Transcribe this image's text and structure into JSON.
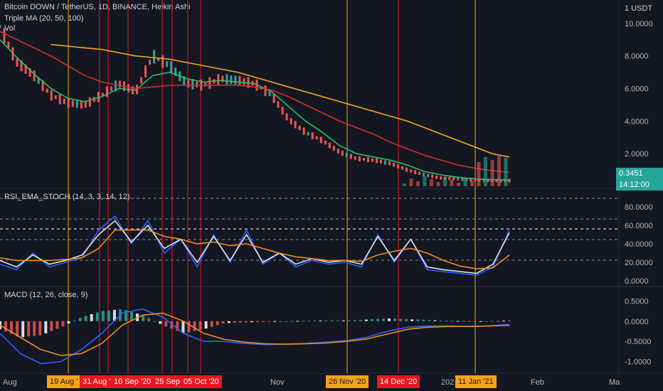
{
  "header": {
    "symbol": "Bitcoin DOWN / TetherUS, 1D, BINANCE, Heikin Ashi",
    "indicator_ma": "Triple MA (20, 50, 100)",
    "indicator_vol": "Vol",
    "currency": "1 USDT"
  },
  "colors": {
    "background": "#131722",
    "grid": "#2a2e39",
    "up": "#26a69a",
    "down": "#ef5350",
    "ma20": "#2bbf6a",
    "ma50": "#d32f2f",
    "ma100": "#f5a623",
    "rsi": "#2962ff",
    "stoch_k": "#e3e3e3",
    "stoch_d": "#f28c1e",
    "marker_orange": "#f7a21b",
    "marker_red": "#e8171f"
  },
  "price_panel": {
    "ticks": [
      "10.0000",
      "8.0000",
      "6.0000",
      "4.0000",
      "2.0000"
    ],
    "last_price": "0.3451",
    "countdown": "14:12:00"
  },
  "rsi_panel": {
    "title": "RSI_EMA_STOCH (14, 3, 3, 14, 12)",
    "ticks": [
      "80.0000",
      "60.0000",
      "40.0000",
      "20.0000",
      "0.0000"
    ]
  },
  "macd_panel": {
    "title": "MACD (12, 26, close, 9)",
    "ticks": [
      "0.5000",
      "0.0000",
      "-0.5000",
      "-1.0000"
    ]
  },
  "x_axis": {
    "months": [
      "Aug",
      "Nov",
      "202",
      "Feb",
      "Ma"
    ],
    "flags": [
      {
        "label": "19 Aug '",
        "color": "orange"
      },
      {
        "label": "31 Aug '",
        "color": "red"
      },
      {
        "label": "10 Sep '20",
        "color": "red"
      },
      {
        "label": "25 Sep",
        "color": "red"
      },
      {
        "label": "05 Oct '20",
        "color": "red"
      },
      {
        "label": "26 Nov '20",
        "color": "orange"
      },
      {
        "label": "14 Dec '20",
        "color": "red"
      },
      {
        "label": "11 Jan '21",
        "color": "orange"
      }
    ]
  },
  "chart_data": [
    {
      "type": "line",
      "title": "Bitcoin DOWN / TetherUS, 1D, BINANCE, Heikin Ashi",
      "ylim": [
        0,
        11
      ],
      "series": [
        {
          "name": "price",
          "values": [
            9.8,
            7.6,
            6.8,
            5.6,
            5.1,
            5.0,
            5.6,
            6.3,
            5.8,
            8.0,
            7.4,
            6.3,
            6.2,
            6.6,
            6.5,
            6.3,
            5.6,
            4.1,
            3.3,
            2.8,
            2.1,
            1.7,
            1.6,
            1.4,
            1.0,
            0.7,
            0.5,
            0.45,
            0.4,
            0.35,
            0.3451
          ]
        },
        {
          "name": "MA 20",
          "values": [
            9.0,
            7.9,
            6.9,
            6.0,
            5.4,
            5.2,
            5.5,
            6.0,
            5.9,
            6.8,
            7.0,
            6.6,
            6.4,
            6.5,
            6.4,
            6.3,
            5.8,
            4.9,
            4.0,
            3.3,
            2.5,
            2.0,
            1.8,
            1.6,
            1.3,
            0.9,
            0.7,
            0.55,
            0.45,
            0.4,
            0.38
          ]
        },
        {
          "name": "MA 50",
          "values": [
            9.5,
            9.0,
            8.5,
            8.0,
            7.4,
            6.8,
            6.4,
            6.2,
            6.0,
            6.1,
            6.2,
            6.2,
            6.2,
            6.2,
            6.2,
            6.1,
            5.9,
            5.5,
            5.0,
            4.5,
            4.0,
            3.6,
            3.2,
            2.7,
            2.3,
            1.9,
            1.6,
            1.3,
            1.1,
            0.95,
            0.85
          ]
        },
        {
          "name": "MA 100",
          "values": [
            null,
            null,
            null,
            8.7,
            8.6,
            8.5,
            8.4,
            8.2,
            8.0,
            7.9,
            7.8,
            7.6,
            7.4,
            7.2,
            7.0,
            6.7,
            6.4,
            6.1,
            5.8,
            5.5,
            5.2,
            4.9,
            4.6,
            4.3,
            4.0,
            3.6,
            3.2,
            2.8,
            2.4,
            2.0,
            1.8
          ]
        }
      ]
    },
    {
      "type": "line",
      "title": "RSI_EMA_STOCH (14, 3, 3, 14, 12)",
      "ylim": [
        0,
        100
      ],
      "series": [
        {
          "name": "RSI",
          "values": [
            18,
            12,
            30,
            15,
            20,
            25,
            55,
            70,
            40,
            65,
            30,
            45,
            15,
            50,
            20,
            55,
            18,
            30,
            15,
            22,
            18,
            20,
            15,
            50,
            20,
            45,
            12,
            10,
            8,
            6,
            15,
            55
          ]
        },
        {
          "name": "K",
          "values": [
            22,
            15,
            28,
            18,
            22,
            28,
            50,
            65,
            42,
            60,
            35,
            45,
            20,
            48,
            22,
            50,
            20,
            30,
            18,
            24,
            20,
            22,
            18,
            48,
            22,
            45,
            15,
            12,
            10,
            8,
            18,
            52
          ]
        },
        {
          "name": "D",
          "values": [
            25,
            22,
            22,
            22,
            23,
            25,
            35,
            55,
            55,
            55,
            48,
            45,
            40,
            42,
            38,
            40,
            35,
            30,
            26,
            24,
            22,
            22,
            21,
            28,
            32,
            35,
            30,
            22,
            16,
            13,
            14,
            28
          ]
        }
      ]
    },
    {
      "type": "line",
      "title": "MACD (12, 26, close, 9)",
      "ylim": [
        -1.2,
        0.7
      ],
      "series": [
        {
          "name": "MACD",
          "values": [
            -0.3,
            -0.8,
            -1.05,
            -1.0,
            -0.7,
            -0.3,
            0.2,
            0.3,
            0.1,
            -0.3,
            -0.5,
            -0.5,
            -0.55,
            -0.58,
            -0.57,
            -0.55,
            -0.52,
            -0.48,
            -0.4,
            -0.25,
            -0.15,
            -0.12,
            -0.12,
            -0.13,
            -0.12,
            -0.08
          ]
        },
        {
          "name": "Signal",
          "values": [
            -0.1,
            -0.4,
            -0.7,
            -0.85,
            -0.8,
            -0.55,
            -0.1,
            0.15,
            0.2,
            0.0,
            -0.3,
            -0.45,
            -0.52,
            -0.56,
            -0.57,
            -0.56,
            -0.54,
            -0.5,
            -0.44,
            -0.32,
            -0.2,
            -0.15,
            -0.13,
            -0.13,
            -0.12,
            -0.1
          ]
        }
      ]
    }
  ]
}
